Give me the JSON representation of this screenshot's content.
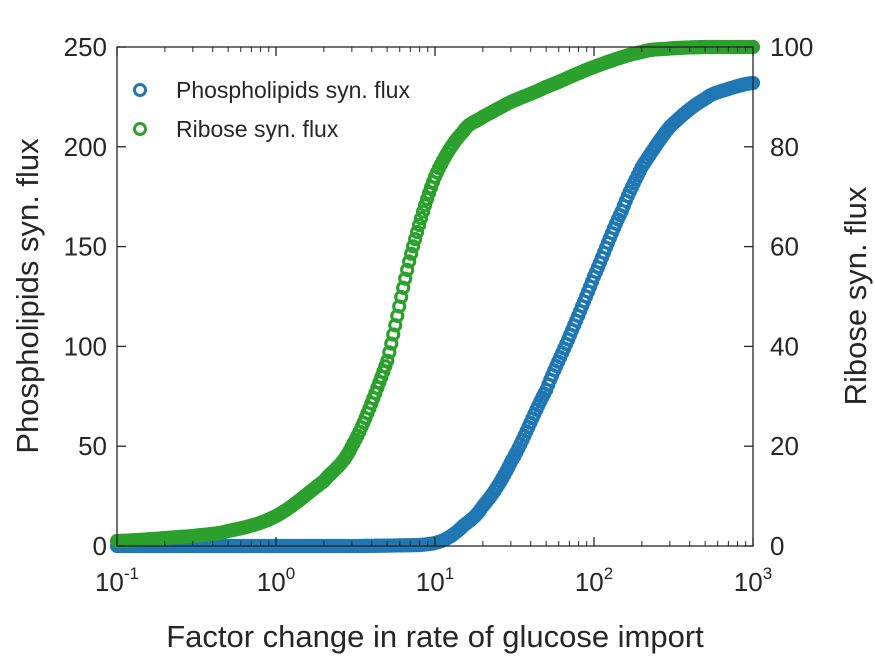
{
  "chart_data": {
    "type": "scatter",
    "x_scale": "log",
    "xlim": [
      0.1,
      1000
    ],
    "ylim_left": [
      0,
      250
    ],
    "ylim_right": [
      0,
      100
    ],
    "xlabel": "Factor change in rate of glucose import",
    "ylabel_left": "Phospholipids syn. flux",
    "ylabel_right": "Ribose syn. flux",
    "x_ticks": [
      {
        "base": "10",
        "exp": "-1",
        "value": 0.1
      },
      {
        "base": "10",
        "exp": "0",
        "value": 1
      },
      {
        "base": "10",
        "exp": "1",
        "value": 10
      },
      {
        "base": "10",
        "exp": "2",
        "value": 100
      },
      {
        "base": "10",
        "exp": "3",
        "value": 1000
      }
    ],
    "y_left_ticks": [
      "0",
      "50",
      "100",
      "150",
      "200",
      "250"
    ],
    "y_right_ticks": [
      "0",
      "20",
      "40",
      "60",
      "80",
      "100"
    ],
    "legend": {
      "placement": "top-left",
      "entries": [
        "Phospholipids syn. flux",
        "Ribose syn. flux"
      ]
    },
    "series": [
      {
        "name": "Phospholipids syn. flux",
        "axis": "left",
        "color": "#1f77b4",
        "x": [
          0.1,
          0.3,
          1,
          3,
          8,
          10,
          12,
          15,
          20,
          30,
          50,
          70,
          100,
          150,
          200,
          300,
          500,
          700,
          1000
        ],
        "y": [
          0,
          0,
          0,
          0,
          0.5,
          1.5,
          4,
          10,
          20,
          42,
          78,
          105,
          135,
          168,
          190,
          210,
          224,
          229,
          232
        ]
      },
      {
        "name": "Ribose syn. flux",
        "axis": "right",
        "color": "#2ca02c",
        "x": [
          0.1,
          0.3,
          0.5,
          1,
          2,
          3,
          5,
          7,
          10,
          15,
          20,
          30,
          50,
          100,
          200,
          300,
          500,
          1000
        ],
        "y": [
          1,
          2,
          3,
          6,
          13,
          20,
          37,
          58,
          74,
          83,
          86,
          89,
          92,
          96,
          99,
          99.7,
          100,
          100
        ]
      }
    ]
  }
}
